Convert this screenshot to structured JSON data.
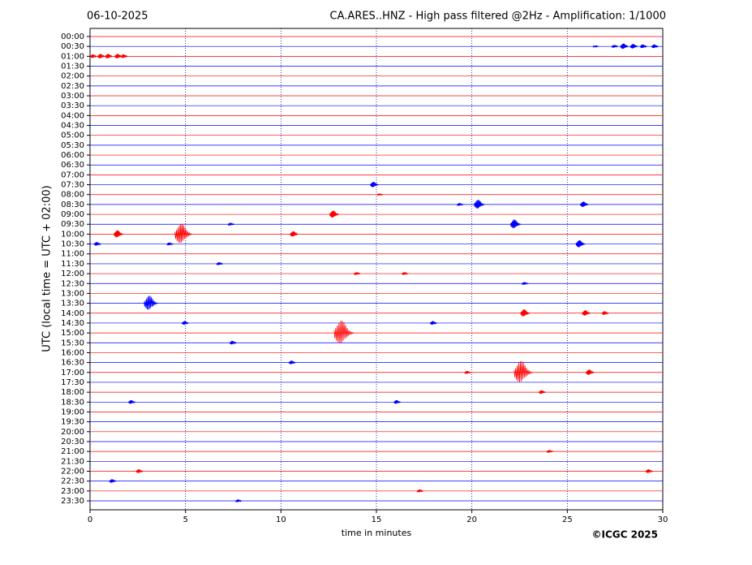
{
  "chart_data": {
    "type": "helicorder",
    "date": "06-10-2025",
    "title": "CA.ARES..HNZ - High pass filtered @2Hz - Amplification: 1/1000",
    "ylabel": "UTC (local time = UTC + 02:00)",
    "xlabel": "time in minutes",
    "credit": "©ICGC 2025",
    "xlim": [
      0,
      30
    ],
    "xticks": [
      0,
      5,
      10,
      15,
      20,
      25,
      30
    ],
    "grid": true,
    "colors": [
      "#ff0000",
      "#0000ff"
    ],
    "categories": [
      "00:00",
      "00:30",
      "01:00",
      "01:30",
      "02:00",
      "02:30",
      "03:00",
      "03:30",
      "04:00",
      "04:30",
      "05:00",
      "05:30",
      "06:00",
      "06:30",
      "07:00",
      "07:30",
      "08:00",
      "08:30",
      "09:00",
      "09:30",
      "10:00",
      "10:30",
      "11:00",
      "11:30",
      "12:00",
      "12:30",
      "13:00",
      "13:30",
      "14:00",
      "14:30",
      "15:00",
      "15:30",
      "16:00",
      "16:30",
      "17:00",
      "17:30",
      "18:00",
      "18:30",
      "19:00",
      "19:30",
      "20:00",
      "20:30",
      "21:00",
      "21:30",
      "22:00",
      "22:30",
      "23:00",
      "23:30"
    ],
    "events": [
      {
        "row": 1,
        "x": 26.5,
        "amp": 0.08
      },
      {
        "row": 1,
        "x": 27.5,
        "amp": 0.15
      },
      {
        "row": 1,
        "x": 28.0,
        "amp": 0.3
      },
      {
        "row": 1,
        "x": 28.5,
        "amp": 0.25
      },
      {
        "row": 1,
        "x": 29.0,
        "amp": 0.2
      },
      {
        "row": 1,
        "x": 29.6,
        "amp": 0.2
      },
      {
        "row": 2,
        "x": 0.2,
        "amp": 0.2
      },
      {
        "row": 2,
        "x": 0.6,
        "amp": 0.25
      },
      {
        "row": 2,
        "x": 1.0,
        "amp": 0.25
      },
      {
        "row": 2,
        "x": 1.5,
        "amp": 0.25
      },
      {
        "row": 2,
        "x": 1.8,
        "amp": 0.2
      },
      {
        "row": 15,
        "x": 14.9,
        "amp": 0.3
      },
      {
        "row": 16,
        "x": 15.2,
        "amp": 0.1
      },
      {
        "row": 17,
        "x": 19.4,
        "amp": 0.15
      },
      {
        "row": 17,
        "x": 20.4,
        "amp": 0.5
      },
      {
        "row": 17,
        "x": 25.9,
        "amp": 0.3
      },
      {
        "row": 18,
        "x": 12.8,
        "amp": 0.4
      },
      {
        "row": 19,
        "x": 7.4,
        "amp": 0.15
      },
      {
        "row": 19,
        "x": 22.3,
        "amp": 0.5
      },
      {
        "row": 20,
        "x": 1.5,
        "amp": 0.4
      },
      {
        "row": 20,
        "x": 4.9,
        "amp": 1.1
      },
      {
        "row": 20,
        "x": 10.7,
        "amp": 0.3
      },
      {
        "row": 21,
        "x": 0.4,
        "amp": 0.2
      },
      {
        "row": 21,
        "x": 4.2,
        "amp": 0.15
      },
      {
        "row": 21,
        "x": 25.7,
        "amp": 0.4
      },
      {
        "row": 23,
        "x": 6.8,
        "amp": 0.15
      },
      {
        "row": 24,
        "x": 14.0,
        "amp": 0.15
      },
      {
        "row": 24,
        "x": 16.5,
        "amp": 0.15
      },
      {
        "row": 25,
        "x": 22.8,
        "amp": 0.15
      },
      {
        "row": 27,
        "x": 3.2,
        "amp": 0.8
      },
      {
        "row": 28,
        "x": 22.8,
        "amp": 0.4
      },
      {
        "row": 28,
        "x": 26.0,
        "amp": 0.3
      },
      {
        "row": 28,
        "x": 27.0,
        "amp": 0.2
      },
      {
        "row": 29,
        "x": 5.0,
        "amp": 0.2
      },
      {
        "row": 29,
        "x": 18.0,
        "amp": 0.2
      },
      {
        "row": 30,
        "x": 13.3,
        "amp": 1.3
      },
      {
        "row": 31,
        "x": 7.5,
        "amp": 0.2
      },
      {
        "row": 33,
        "x": 10.6,
        "amp": 0.2
      },
      {
        "row": 34,
        "x": 19.8,
        "amp": 0.15
      },
      {
        "row": 34,
        "x": 22.7,
        "amp": 1.2
      },
      {
        "row": 34,
        "x": 26.2,
        "amp": 0.3
      },
      {
        "row": 36,
        "x": 23.7,
        "amp": 0.2
      },
      {
        "row": 37,
        "x": 2.2,
        "amp": 0.2
      },
      {
        "row": 37,
        "x": 16.1,
        "amp": 0.2
      },
      {
        "row": 42,
        "x": 24.1,
        "amp": 0.15
      },
      {
        "row": 44,
        "x": 2.6,
        "amp": 0.2
      },
      {
        "row": 44,
        "x": 29.3,
        "amp": 0.2
      },
      {
        "row": 45,
        "x": 1.2,
        "amp": 0.2
      },
      {
        "row": 46,
        "x": 17.3,
        "amp": 0.15
      },
      {
        "row": 47,
        "x": 7.8,
        "amp": 0.15
      }
    ]
  }
}
